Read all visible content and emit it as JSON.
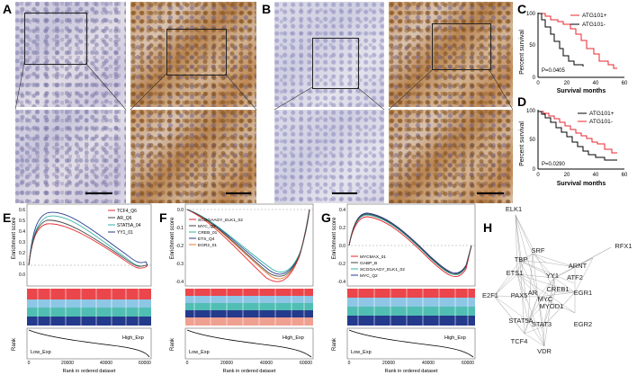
{
  "panels": {
    "A": {
      "label": "A"
    },
    "B": {
      "label": "B"
    },
    "C": {
      "label": "C",
      "ylabel": "Percent survival",
      "xlabel": "Survival months",
      "p": "P=0.0405",
      "legend": [
        "ATG101+",
        "ATG101-"
      ],
      "xticks": [
        "0",
        "20",
        "40",
        "60"
      ],
      "yticks": [
        "0",
        "50",
        "100"
      ]
    },
    "D": {
      "label": "D",
      "ylabel": "Percent survival",
      "xlabel": "Survival months",
      "p": "P=0.0290",
      "legend": [
        "ATG101+",
        "ATG101-"
      ],
      "xticks": [
        "0",
        "20",
        "40",
        "60"
      ],
      "yticks": [
        "0",
        "50",
        "100"
      ]
    },
    "E": {
      "label": "E",
      "ylabel_top": "Enrichment score",
      "ylabel_bottom": "Rank",
      "xlabel": "Rank in ordered dataset",
      "legend": [
        "TCF4_Q6",
        "AR_Q6",
        "STAT5A_04",
        "YY1_01"
      ],
      "yticks": [
        "0.6",
        "0.5",
        "0.4",
        "0.3",
        "0.2",
        "0.1",
        "0.0"
      ],
      "xticks": [
        "0",
        "20000",
        "40000",
        "60000"
      ],
      "low": "Low_Exp",
      "high": "High_Exp"
    },
    "F": {
      "label": "F",
      "ylabel_top": "Enrichment score",
      "ylabel_bottom": "Rank",
      "xlabel": "Rank in ordered dataset",
      "legend": [
        "SCGGAAGY_ELK1_02",
        "MYC_Q2",
        "CREB_01",
        "ETS_Q4",
        "EGR2_01"
      ],
      "yticks": [
        "0.0",
        "-0.1",
        "-0.2",
        "-0.3",
        "-0.4"
      ],
      "xticks": [
        "0",
        "20000",
        "40000",
        "60000"
      ],
      "low": "Low_Exp",
      "high": "High_Exp"
    },
    "G": {
      "label": "G",
      "ylabel_top": "Enrichment score",
      "ylabel_bottom": "Rank",
      "xlabel": "Rank in ordered dataset",
      "legend": [
        "MYCMAX_01",
        "GABP_B",
        "SCGGAAGY_ELK1_02",
        "MYC_Q2"
      ],
      "yticks": [
        "0.4",
        "0.2",
        "0.0",
        "-0.2",
        "-0.4"
      ],
      "xticks": [
        "0",
        "20000",
        "40000",
        "60000"
      ],
      "low": "Low_Exp",
      "high": "High_Exp"
    },
    "H": {
      "label": "H",
      "nodes": [
        "ELK1",
        "SRF",
        "TBP",
        "ARNT",
        "RFX1",
        "ETS1",
        "YY1",
        "ATF2",
        "CREB1",
        "E2F1",
        "PAX5",
        "AR",
        "MYC",
        "EGR1",
        "MYOD1",
        "STAT5A",
        "STAT3",
        "EGR2",
        "TCF4",
        "VDR"
      ]
    }
  },
  "colors": {
    "red": "#e8262c",
    "black": "#000000",
    "teal": "#33b3a6",
    "navy": "#243a8c",
    "sky": "#8ec6e6",
    "salmon": "#f0a090",
    "orange": "#e8782c"
  }
}
